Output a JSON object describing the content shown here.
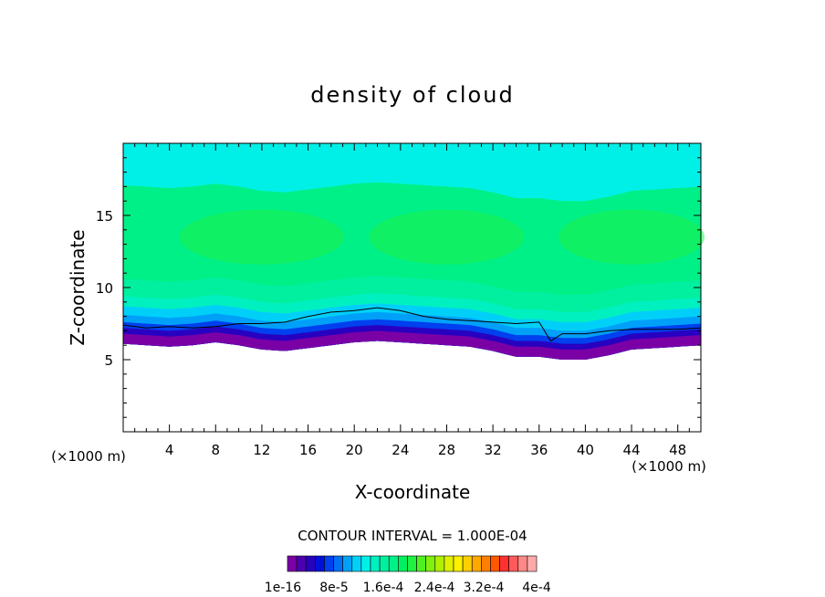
{
  "chart_data": {
    "type": "heatmap",
    "title": "density of cloud",
    "xlabel": "X-coordinate",
    "ylabel": "Z-coordinate",
    "x_unit": "(×1000 m)",
    "y_unit": "(×1000 m)",
    "xlim": [
      0,
      50
    ],
    "ylim": [
      0,
      20
    ],
    "x_ticks": [
      4,
      8,
      12,
      16,
      20,
      24,
      28,
      32,
      36,
      40,
      44,
      48
    ],
    "y_ticks": [
      5,
      10,
      15
    ],
    "x_tick_labels": [
      "4",
      "8",
      "12",
      "16",
      "20",
      "24",
      "28",
      "32",
      "36",
      "40",
      "44",
      "48"
    ],
    "y_tick_labels": [
      "5",
      "10",
      "15"
    ],
    "contour_interval_text": "CONTOUR INTERVAL = 1.000E-04",
    "colorbar": {
      "min": 1e-16,
      "max": 0.0004,
      "labels": [
        "1e-16",
        "8e-5",
        "1.6e-4",
        "2.4e-4",
        "3.2e-4",
        "4e-4"
      ],
      "colors": [
        "#7a00a6",
        "#4b00b0",
        "#2800c0",
        "#0010d8",
        "#0040ee",
        "#0070f5",
        "#00a0f8",
        "#00d0f8",
        "#00f0e8",
        "#00f0c0",
        "#00f0a0",
        "#00f088",
        "#00f060",
        "#20f040",
        "#50f020",
        "#80f010",
        "#b0f000",
        "#e0f000",
        "#fff000",
        "#ffd000",
        "#ffa800",
        "#ff8000",
        "#ff5800",
        "#ff3030",
        "#ff5a5a",
        "#ff8888",
        "#ffaaaa"
      ]
    },
    "cloud_base_km": [
      [
        0,
        6.1
      ],
      [
        2,
        6.0
      ],
      [
        4,
        5.9
      ],
      [
        6,
        6.0
      ],
      [
        8,
        6.2
      ],
      [
        10,
        6.0
      ],
      [
        12,
        5.7
      ],
      [
        14,
        5.6
      ],
      [
        16,
        5.8
      ],
      [
        18,
        6.0
      ],
      [
        20,
        6.2
      ],
      [
        22,
        6.3
      ],
      [
        24,
        6.2
      ],
      [
        26,
        6.1
      ],
      [
        28,
        6.0
      ],
      [
        30,
        5.9
      ],
      [
        32,
        5.6
      ],
      [
        34,
        5.2
      ],
      [
        36,
        5.2
      ],
      [
        38,
        5.0
      ],
      [
        40,
        5.0
      ],
      [
        42,
        5.3
      ],
      [
        44,
        5.7
      ],
      [
        46,
        5.8
      ],
      [
        48,
        5.9
      ],
      [
        50,
        6.0
      ]
    ],
    "cloud_top_km": 20,
    "contour_1e-4_km": [
      [
        0,
        7.4
      ],
      [
        2,
        7.2
      ],
      [
        4,
        7.3
      ],
      [
        6,
        7.2
      ],
      [
        8,
        7.3
      ],
      [
        10,
        7.5
      ],
      [
        12,
        7.5
      ],
      [
        14,
        7.6
      ],
      [
        16,
        8.0
      ],
      [
        18,
        8.3
      ],
      [
        20,
        8.4
      ],
      [
        22,
        8.6
      ],
      [
        24,
        8.4
      ],
      [
        26,
        8.0
      ],
      [
        28,
        7.8
      ],
      [
        30,
        7.7
      ],
      [
        32,
        7.6
      ],
      [
        34,
        7.5
      ],
      [
        36,
        7.6
      ],
      [
        37,
        6.3
      ],
      [
        38,
        6.8
      ],
      [
        40,
        6.8
      ],
      [
        42,
        7.0
      ],
      [
        44,
        7.1
      ],
      [
        46,
        7.1
      ],
      [
        48,
        7.1
      ],
      [
        50,
        7.2
      ]
    ],
    "layers": [
      {
        "level": "1e-16",
        "color": "#7a00a6",
        "top_offset_km": 0.7
      },
      {
        "level": "2e-5",
        "color": "#2800c0",
        "top_offset_km": 1.1
      },
      {
        "level": "4e-5",
        "color": "#0040ee",
        "top_offset_km": 1.5
      },
      {
        "level": "6e-5",
        "color": "#00a0f8",
        "top_offset_km": 2.0
      },
      {
        "level": "8e-5",
        "color": "#00d0f8",
        "top_offset_km": 2.6
      },
      {
        "level": "1e-4",
        "color": "#00f0c0",
        "top_offset_km": 3.3
      },
      {
        "level": "1.2e-4",
        "color": "#00f0a0",
        "top_offset_km": 4.5
      },
      {
        "level": "1.4e-4",
        "color": "#00f088",
        "top_offset_km": 11.0
      }
    ],
    "core_color": "#20f040",
    "grid": false,
    "legend_placement": "bottom"
  }
}
